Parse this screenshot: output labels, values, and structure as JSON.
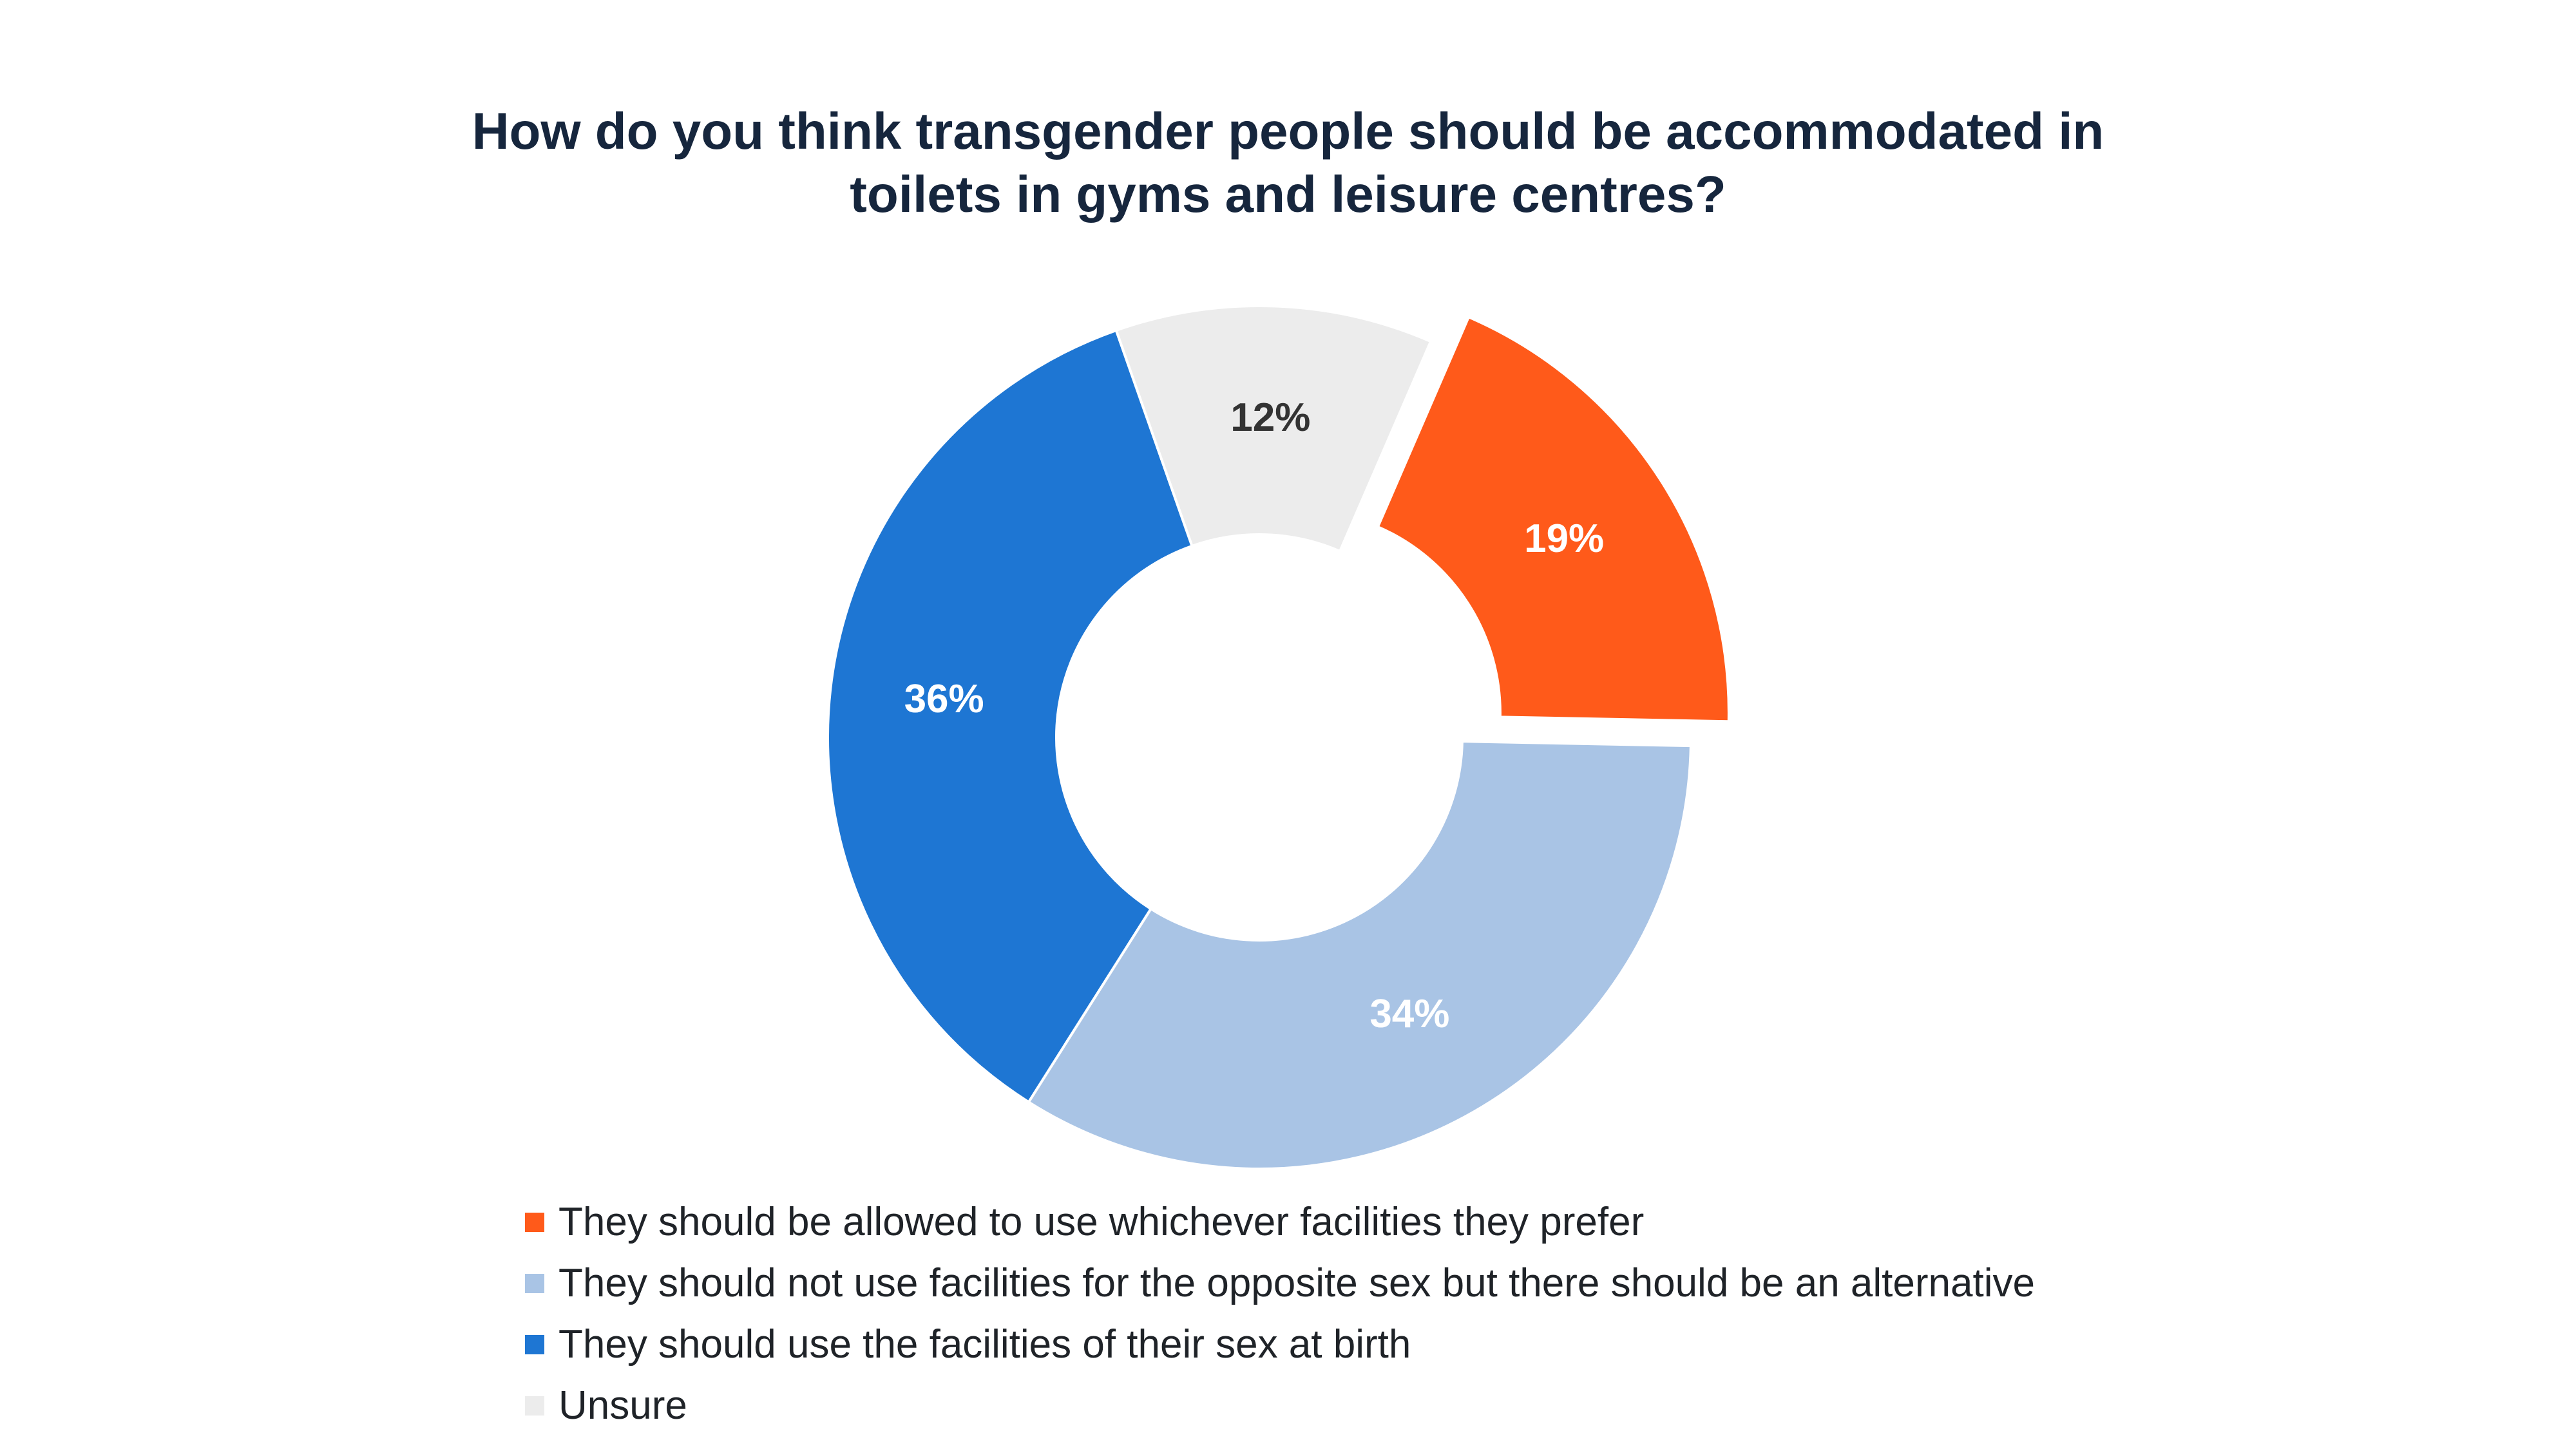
{
  "chart_data": {
    "type": "pie",
    "title_lines": [
      "How do you think transgender people should be accommodated in",
      "toilets in gyms and leisure centres?"
    ],
    "categories": [
      "They should be allowed to use whichever facilities they prefer",
      "They should not use facilities for the opposite sex but there should be an alternative",
      "They should use the facilities of their sex at birth",
      "Unsure"
    ],
    "values": [
      19,
      34,
      36,
      12
    ],
    "labels": [
      "19%",
      "34%",
      "36%",
      "12%"
    ],
    "colors": [
      "#ff5a1a",
      "#a9c4e5",
      "#1e76d3",
      "#ececec"
    ],
    "label_colors": [
      "#ffffff",
      "#ffffff",
      "#ffffff",
      "#333333"
    ],
    "exploded": [
      true,
      false,
      false,
      false
    ],
    "legend_position": "bottom"
  }
}
